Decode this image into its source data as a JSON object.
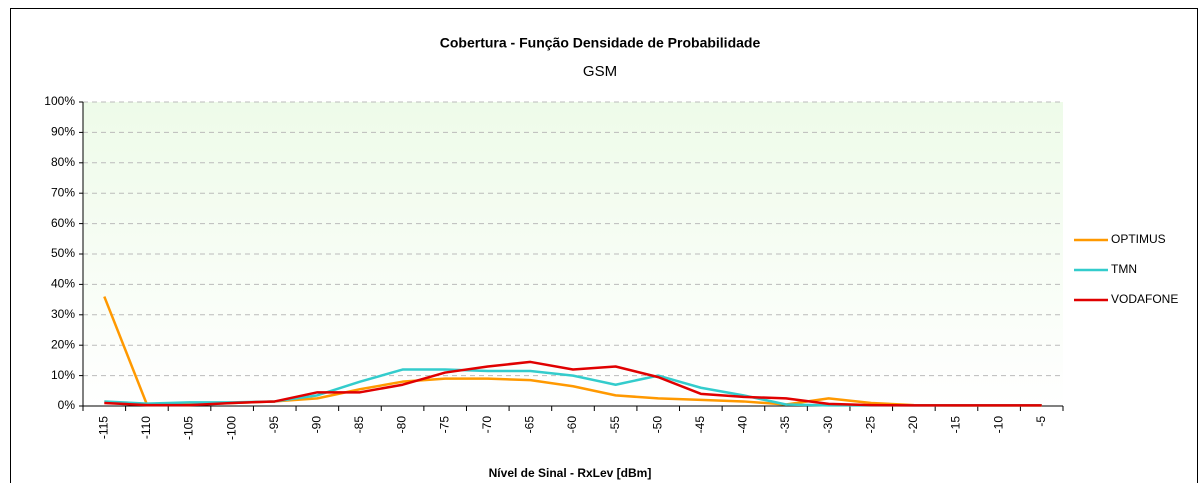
{
  "chart_data": {
    "type": "line",
    "title": "Cobertura - Função Densidade de Probabilidade",
    "subtitle": "GSM",
    "x_label": "Nível de Sinal - RxLev [dBm]",
    "categories": [
      "-115",
      "-110",
      "-105",
      "-100",
      "-95",
      "-90",
      "-85",
      "-80",
      "-75",
      "-70",
      "-65",
      "-60",
      "-55",
      "-50",
      "-45",
      "-40",
      "-35",
      "-30",
      "-25",
      "-20",
      "-15",
      "-10",
      "-5"
    ],
    "series": [
      {
        "name": "OPTIMUS",
        "color": "#ff9900",
        "values": [
          36,
          0.5,
          0.5,
          1,
          1.5,
          2.5,
          5.5,
          8,
          9,
          9,
          8.5,
          6.5,
          3.5,
          2.5,
          2,
          1.5,
          0.5,
          2.5,
          1,
          0.3,
          0.2,
          0.2,
          0.2
        ]
      },
      {
        "name": "TMN",
        "color": "#33cccc",
        "values": [
          1.5,
          0.8,
          1.2,
          1.2,
          1.5,
          3.5,
          8,
          12,
          12,
          11.5,
          11.5,
          10,
          7,
          10,
          6,
          3.5,
          0.5,
          0.2,
          0.2,
          0.2,
          0.2,
          0.2,
          0.2
        ]
      },
      {
        "name": "VODAFONE",
        "color": "#e00000",
        "values": [
          1,
          0.3,
          0.3,
          1,
          1.5,
          4.5,
          4.5,
          7,
          11,
          13,
          14.5,
          12,
          13,
          9.5,
          4,
          3,
          2.5,
          0.7,
          0.3,
          0.2,
          0.2,
          0.2,
          0.2
        ]
      }
    ],
    "ylim": [
      0,
      100
    ],
    "yticks": [
      {
        "value": 0,
        "label": "0%"
      },
      {
        "value": 10,
        "label": "10%"
      },
      {
        "value": 20,
        "label": "20%"
      },
      {
        "value": 30,
        "label": "30%"
      },
      {
        "value": 40,
        "label": "40%"
      },
      {
        "value": 50,
        "label": "50%"
      },
      {
        "value": 60,
        "label": "60%"
      },
      {
        "value": 70,
        "label": "70%"
      },
      {
        "value": 80,
        "label": "80%"
      },
      {
        "value": 90,
        "label": "90%"
      },
      {
        "value": 100,
        "label": "100%"
      }
    ],
    "grid": true,
    "legend": "right"
  }
}
